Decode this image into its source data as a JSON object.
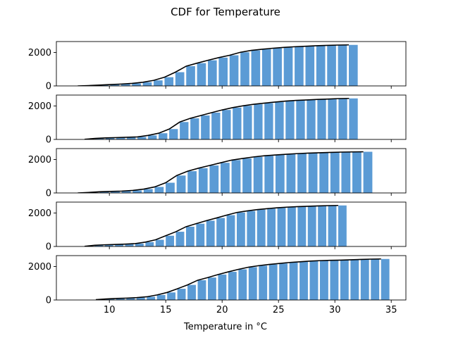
{
  "chart_data": {
    "type": "bar",
    "title": "CDF for Temperature",
    "xlabel": "Temperature in °C",
    "ylabel": "",
    "xlim": [
      5.3,
      36.3
    ],
    "ylim": [
      0,
      2650
    ],
    "xticks": [
      10,
      15,
      20,
      25,
      30,
      35
    ],
    "yticks": [
      0,
      2000
    ],
    "bar_color": "#5b9bd5",
    "line_color": "#000000",
    "panels": [
      {
        "x_start": 7.2,
        "x_end": 32.2,
        "values": [
          0,
          20,
          50,
          80,
          110,
          150,
          220,
          330,
          520,
          820,
          1180,
          1360,
          1530,
          1690,
          1830,
          2010,
          2120,
          2190,
          2250,
          2300,
          2340,
          2370,
          2400,
          2420,
          2440,
          2450
        ]
      },
      {
        "x_start": 7.8,
        "x_end": 32.2,
        "values": [
          10,
          60,
          90,
          110,
          130,
          150,
          240,
          370,
          620,
          1040,
          1260,
          1430,
          1600,
          1760,
          1900,
          2010,
          2100,
          2170,
          2230,
          2290,
          2330,
          2360,
          2390,
          2410,
          2440,
          2450
        ]
      },
      {
        "x_start": 7.2,
        "x_end": 33.5,
        "values": [
          0,
          30,
          70,
          90,
          110,
          150,
          230,
          360,
          610,
          1040,
          1300,
          1480,
          1640,
          1800,
          1960,
          2060,
          2150,
          2220,
          2270,
          2310,
          2350,
          2380,
          2400,
          2420,
          2440,
          2450,
          2460
        ]
      },
      {
        "x_start": 7.8,
        "x_end": 31.2,
        "values": [
          10,
          70,
          100,
          120,
          140,
          170,
          260,
          400,
          640,
          880,
          1180,
          1360,
          1540,
          1700,
          1870,
          2030,
          2120,
          2200,
          2260,
          2310,
          2350,
          2380,
          2400,
          2420,
          2440,
          2450
        ]
      },
      {
        "x_start": 8.8,
        "x_end": 35.0,
        "values": [
          20,
          60,
          90,
          110,
          140,
          190,
          300,
          450,
          670,
          900,
          1180,
          1340,
          1520,
          1680,
          1830,
          1960,
          2050,
          2120,
          2180,
          2240,
          2280,
          2320,
          2350,
          2370,
          2380,
          2400,
          2420,
          2440,
          2450
        ]
      }
    ]
  }
}
